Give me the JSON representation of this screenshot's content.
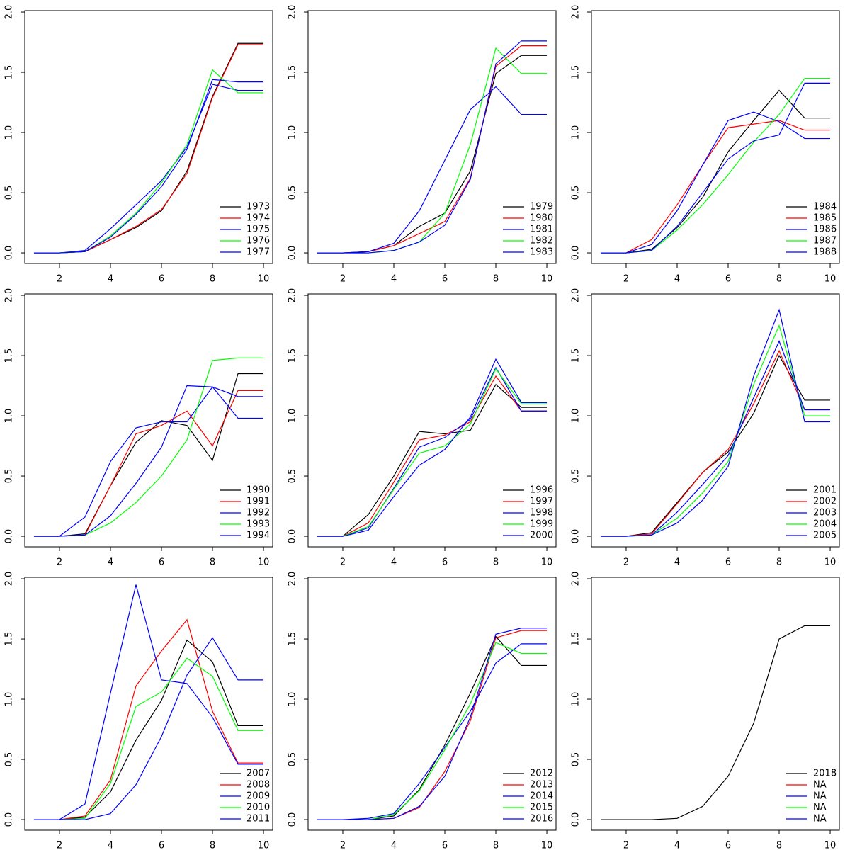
{
  "chart_data": [
    {
      "type": "line",
      "x": [
        1,
        2,
        3,
        4,
        5,
        6,
        7,
        8,
        9,
        10
      ],
      "xlim": [
        0.64,
        10.36
      ],
      "xticks": [
        2,
        4,
        6,
        8,
        10
      ],
      "ylim": [
        -0.088,
        2.012
      ],
      "yticks": [
        {
          "value": 0,
          "label": "0.0"
        },
        0.5,
        {
          "value": 1,
          "label": "1.0"
        },
        1.5,
        {
          "value": 2,
          "label": "2.0"
        }
      ],
      "legend": "bottomright",
      "series": [
        {
          "name": "1973",
          "color": "#000000",
          "values": [
            0,
            0,
            0.01,
            0.11,
            0.21,
            0.35,
            0.68,
            1.3,
            1.74,
            1.74
          ]
        },
        {
          "name": "1974",
          "color": "#ff0000",
          "values": [
            0,
            0,
            0.01,
            0.11,
            0.22,
            0.36,
            0.66,
            1.29,
            1.73,
            1.73
          ]
        },
        {
          "name": "1975",
          "color": "#0000ff",
          "values": [
            0,
            0,
            0.02,
            0.2,
            0.4,
            0.6,
            0.88,
            1.4,
            1.35,
            1.35
          ]
        },
        {
          "name": "1976",
          "color": "#00ff00",
          "values": [
            0,
            0,
            0.01,
            0.14,
            0.33,
            0.58,
            0.9,
            1.52,
            1.33,
            1.33
          ]
        },
        {
          "name": "1977",
          "color": "#0000ff",
          "values": [
            0,
            0,
            0.01,
            0.13,
            0.32,
            0.55,
            0.86,
            1.44,
            1.42,
            1.42
          ]
        }
      ]
    },
    {
      "type": "line",
      "x": [
        1,
        2,
        3,
        4,
        5,
        6,
        7,
        8,
        9,
        10
      ],
      "xlim": [
        0.64,
        10.36
      ],
      "xticks": [
        2,
        4,
        6,
        8,
        10
      ],
      "ylim": [
        -0.088,
        2.012
      ],
      "yticks": [
        {
          "value": 0,
          "label": "0.0"
        },
        0.5,
        {
          "value": 1,
          "label": "1.0"
        },
        1.5,
        {
          "value": 2,
          "label": "2.0"
        }
      ],
      "legend": "bottomright",
      "series": [
        {
          "name": "1979",
          "color": "#000000",
          "values": [
            0,
            0,
            0.01,
            0.06,
            0.22,
            0.33,
            0.68,
            1.49,
            1.64,
            1.64
          ]
        },
        {
          "name": "1980",
          "color": "#ff0000",
          "values": [
            0,
            0,
            0.01,
            0.06,
            0.16,
            0.26,
            0.62,
            1.55,
            1.72,
            1.72
          ]
        },
        {
          "name": "1981",
          "color": "#0000ff",
          "values": [
            0,
            0,
            0.01,
            0.08,
            0.35,
            0.77,
            1.19,
            1.38,
            1.15,
            1.15
          ]
        },
        {
          "name": "1982",
          "color": "#00ff00",
          "values": [
            0,
            0,
            0,
            0.02,
            0.09,
            0.33,
            0.9,
            1.7,
            1.49,
            1.49
          ]
        },
        {
          "name": "1983",
          "color": "#0000ff",
          "values": [
            0,
            0,
            0,
            0.02,
            0.09,
            0.23,
            0.61,
            1.57,
            1.76,
            1.76
          ]
        }
      ]
    },
    {
      "type": "line",
      "x": [
        1,
        2,
        3,
        4,
        5,
        6,
        7,
        8,
        9,
        10
      ],
      "xlim": [
        0.64,
        10.36
      ],
      "xticks": [
        2,
        4,
        6,
        8,
        10
      ],
      "ylim": [
        -0.088,
        2.012
      ],
      "yticks": [
        {
          "value": 0,
          "label": "0.0"
        },
        0.5,
        {
          "value": 1,
          "label": "1.0"
        },
        1.5,
        {
          "value": 2,
          "label": "2.0"
        }
      ],
      "legend": "bottomright",
      "series": [
        {
          "name": "1984",
          "color": "#000000",
          "values": [
            0,
            0,
            0.03,
            0.21,
            0.46,
            0.84,
            1.1,
            1.35,
            1.12,
            1.12
          ]
        },
        {
          "name": "1985",
          "color": "#ff0000",
          "values": [
            0,
            0,
            0.11,
            0.4,
            0.73,
            1.04,
            1.07,
            1.1,
            1.02,
            1.02
          ]
        },
        {
          "name": "1986",
          "color": "#0000ff",
          "values": [
            0,
            0,
            0.07,
            0.35,
            0.73,
            1.1,
            1.17,
            1.09,
            0.95,
            0.95
          ]
        },
        {
          "name": "1987",
          "color": "#00ff00",
          "values": [
            0,
            0,
            0.02,
            0.19,
            0.4,
            0.65,
            0.92,
            1.15,
            1.45,
            1.45
          ]
        },
        {
          "name": "1988",
          "color": "#0000ff",
          "values": [
            0,
            0,
            0.02,
            0.22,
            0.5,
            0.78,
            0.93,
            0.98,
            1.41,
            1.41
          ]
        }
      ]
    },
    {
      "type": "line",
      "x": [
        1,
        2,
        3,
        4,
        5,
        6,
        7,
        8,
        9,
        10
      ],
      "xlim": [
        0.64,
        10.36
      ],
      "xticks": [
        2,
        4,
        6,
        8,
        10
      ],
      "ylim": [
        -0.088,
        2.012
      ],
      "yticks": [
        {
          "value": 0,
          "label": "0.0"
        },
        0.5,
        {
          "value": 1,
          "label": "1.0"
        },
        1.5,
        {
          "value": 2,
          "label": "2.0"
        }
      ],
      "legend": "bottomright",
      "series": [
        {
          "name": "1990",
          "color": "#000000",
          "values": [
            0,
            0,
            0.02,
            0.42,
            0.78,
            0.96,
            0.92,
            0.63,
            1.35,
            1.35
          ]
        },
        {
          "name": "1991",
          "color": "#ff0000",
          "values": [
            0,
            0,
            0.01,
            0.42,
            0.85,
            0.92,
            1.04,
            0.75,
            1.21,
            1.21
          ]
        },
        {
          "name": "1992",
          "color": "#0000ff",
          "values": [
            0,
            0,
            0.16,
            0.62,
            0.9,
            0.95,
            0.95,
            1.24,
            0.98,
            0.98
          ]
        },
        {
          "name": "1993",
          "color": "#00ff00",
          "values": [
            0,
            0,
            0.01,
            0.11,
            0.28,
            0.5,
            0.8,
            1.46,
            1.48,
            1.48
          ]
        },
        {
          "name": "1994",
          "color": "#0000ff",
          "values": [
            0,
            0,
            0.01,
            0.17,
            0.44,
            0.74,
            1.25,
            1.24,
            1.16,
            1.16
          ]
        }
      ]
    },
    {
      "type": "line",
      "x": [
        1,
        2,
        3,
        4,
        5,
        6,
        7,
        8,
        9,
        10
      ],
      "xlim": [
        0.64,
        10.36
      ],
      "xticks": [
        2,
        4,
        6,
        8,
        10
      ],
      "ylim": [
        -0.088,
        2.012
      ],
      "yticks": [
        {
          "value": 0,
          "label": "0.0"
        },
        0.5,
        {
          "value": 1,
          "label": "1.0"
        },
        1.5,
        {
          "value": 2,
          "label": "2.0"
        }
      ],
      "legend": "bottomright",
      "series": [
        {
          "name": "1996",
          "color": "#000000",
          "values": [
            0,
            0,
            0.18,
            0.5,
            0.87,
            0.85,
            0.88,
            1.26,
            1.07,
            1.07
          ]
        },
        {
          "name": "1997",
          "color": "#ff0000",
          "values": [
            0,
            0,
            0.11,
            0.45,
            0.8,
            0.84,
            0.95,
            1.33,
            1.04,
            1.04
          ]
        },
        {
          "name": "1998",
          "color": "#0000ff",
          "values": [
            0,
            0,
            0.07,
            0.4,
            0.74,
            0.82,
            0.97,
            1.4,
            1.04,
            1.04
          ]
        },
        {
          "name": "1999",
          "color": "#00ff00",
          "values": [
            0,
            0,
            0.08,
            0.39,
            0.69,
            0.75,
            0.93,
            1.39,
            1.1,
            1.1
          ]
        },
        {
          "name": "2000",
          "color": "#0000ff",
          "values": [
            0,
            0,
            0.05,
            0.33,
            0.59,
            0.72,
            0.99,
            1.47,
            1.11,
            1.11
          ]
        }
      ]
    },
    {
      "type": "line",
      "x": [
        1,
        2,
        3,
        4,
        5,
        6,
        7,
        8,
        9,
        10
      ],
      "xlim": [
        0.64,
        10.36
      ],
      "xticks": [
        2,
        4,
        6,
        8,
        10
      ],
      "ylim": [
        -0.088,
        2.012
      ],
      "yticks": [
        {
          "value": 0,
          "label": "0.0"
        },
        0.5,
        {
          "value": 1,
          "label": "1.0"
        },
        1.5,
        {
          "value": 2,
          "label": "2.0"
        }
      ],
      "legend": "bottomright",
      "series": [
        {
          "name": "2001",
          "color": "#000000",
          "values": [
            0,
            0,
            0.03,
            0.28,
            0.53,
            0.7,
            1.02,
            1.5,
            1.13,
            1.13
          ]
        },
        {
          "name": "2002",
          "color": "#ff0000",
          "values": [
            0,
            0,
            0.02,
            0.27,
            0.53,
            0.72,
            1.1,
            1.54,
            1.05,
            1.05
          ]
        },
        {
          "name": "2003",
          "color": "#0000ff",
          "values": [
            0,
            0,
            0.01,
            0.2,
            0.43,
            0.67,
            1.15,
            1.62,
            1.05,
            1.05
          ]
        },
        {
          "name": "2004",
          "color": "#00ff00",
          "values": [
            0,
            0,
            0.01,
            0.15,
            0.36,
            0.62,
            1.26,
            1.75,
            1.0,
            1.0
          ]
        },
        {
          "name": "2005",
          "color": "#0000ff",
          "values": [
            0,
            0,
            0.01,
            0.11,
            0.3,
            0.58,
            1.33,
            1.88,
            0.95,
            0.95
          ]
        }
      ]
    },
    {
      "type": "line",
      "x": [
        1,
        2,
        3,
        4,
        5,
        6,
        7,
        8,
        9,
        10
      ],
      "xlim": [
        0.64,
        10.36
      ],
      "xticks": [
        2,
        4,
        6,
        8,
        10
      ],
      "ylim": [
        -0.088,
        2.012
      ],
      "yticks": [
        {
          "value": 0,
          "label": "0.0"
        },
        0.5,
        {
          "value": 1,
          "label": "1.0"
        },
        1.5,
        {
          "value": 2,
          "label": "2.0"
        }
      ],
      "legend": "bottomright",
      "series": [
        {
          "name": "2007",
          "color": "#000000",
          "values": [
            0,
            0,
            0.02,
            0.23,
            0.66,
            0.99,
            1.49,
            1.31,
            0.78,
            0.78
          ]
        },
        {
          "name": "2008",
          "color": "#ff0000",
          "values": [
            0,
            0,
            0.03,
            0.33,
            1.11,
            1.4,
            1.66,
            0.9,
            0.47,
            0.47
          ]
        },
        {
          "name": "2009",
          "color": "#0000ff",
          "values": [
            0,
            0,
            0.13,
            1.05,
            1.95,
            1.16,
            1.13,
            0.85,
            0.46,
            0.46
          ]
        },
        {
          "name": "2010",
          "color": "#00ff00",
          "values": [
            0,
            0,
            0.01,
            0.3,
            0.94,
            1.06,
            1.34,
            1.19,
            0.74,
            0.74
          ]
        },
        {
          "name": "2011",
          "color": "#0000ff",
          "values": [
            0,
            0,
            0,
            0.05,
            0.29,
            0.69,
            1.2,
            1.51,
            1.16,
            1.16
          ]
        }
      ]
    },
    {
      "type": "line",
      "x": [
        1,
        2,
        3,
        4,
        5,
        6,
        7,
        8,
        9,
        10
      ],
      "xlim": [
        0.64,
        10.36
      ],
      "xticks": [
        2,
        4,
        6,
        8,
        10
      ],
      "ylim": [
        -0.088,
        2.012
      ],
      "yticks": [
        {
          "value": 0,
          "label": "0.0"
        },
        0.5,
        {
          "value": 1,
          "label": "1.0"
        },
        1.5,
        {
          "value": 2,
          "label": "2.0"
        }
      ],
      "legend": "bottomright",
      "series": [
        {
          "name": "2012",
          "color": "#000000",
          "values": [
            0,
            0,
            0,
            0.03,
            0.25,
            0.62,
            1.05,
            1.52,
            1.28,
            1.28
          ]
        },
        {
          "name": "2013",
          "color": "#ff0000",
          "values": [
            0,
            0,
            0,
            0.01,
            0.1,
            0.4,
            0.82,
            1.51,
            1.57,
            1.57
          ]
        },
        {
          "name": "2014",
          "color": "#0000ff",
          "values": [
            0,
            0,
            0.01,
            0.05,
            0.3,
            0.6,
            0.9,
            1.3,
            1.46,
            1.46
          ]
        },
        {
          "name": "2015",
          "color": "#00ff00",
          "values": [
            0,
            0,
            0,
            0.04,
            0.24,
            0.58,
            0.96,
            1.47,
            1.38,
            1.38
          ]
        },
        {
          "name": "2016",
          "color": "#0000ff",
          "values": [
            0,
            0,
            0,
            0.01,
            0.11,
            0.36,
            0.85,
            1.54,
            1.59,
            1.59
          ]
        }
      ]
    },
    {
      "type": "line",
      "x": [
        1,
        2,
        3,
        4,
        5,
        6,
        7,
        8,
        9,
        10
      ],
      "xlim": [
        0.64,
        10.36
      ],
      "xticks": [
        2,
        4,
        6,
        8,
        10
      ],
      "ylim": [
        -0.088,
        2.012
      ],
      "yticks": [
        {
          "value": 0,
          "label": "0.0"
        },
        0.5,
        {
          "value": 1,
          "label": "1.0"
        },
        1.5,
        {
          "value": 2,
          "label": "2.0"
        }
      ],
      "legend": "bottomright",
      "series": [
        {
          "name": "2018",
          "color": "#000000",
          "values": [
            0,
            0,
            0,
            0.01,
            0.11,
            0.36,
            0.8,
            1.5,
            1.61,
            1.61
          ]
        },
        {
          "name": "NA",
          "color": "#ff0000",
          "values": [
            null,
            null,
            null,
            null,
            null,
            null,
            null,
            null,
            null,
            null
          ]
        },
        {
          "name": "NA",
          "color": "#0000ff",
          "values": [
            null,
            null,
            null,
            null,
            null,
            null,
            null,
            null,
            null,
            null
          ]
        },
        {
          "name": "NA",
          "color": "#00ff00",
          "values": [
            null,
            null,
            null,
            null,
            null,
            null,
            null,
            null,
            null,
            null
          ]
        },
        {
          "name": "NA",
          "color": "#0000ff",
          "values": [
            null,
            null,
            null,
            null,
            null,
            null,
            null,
            null,
            null,
            null
          ]
        }
      ]
    }
  ]
}
